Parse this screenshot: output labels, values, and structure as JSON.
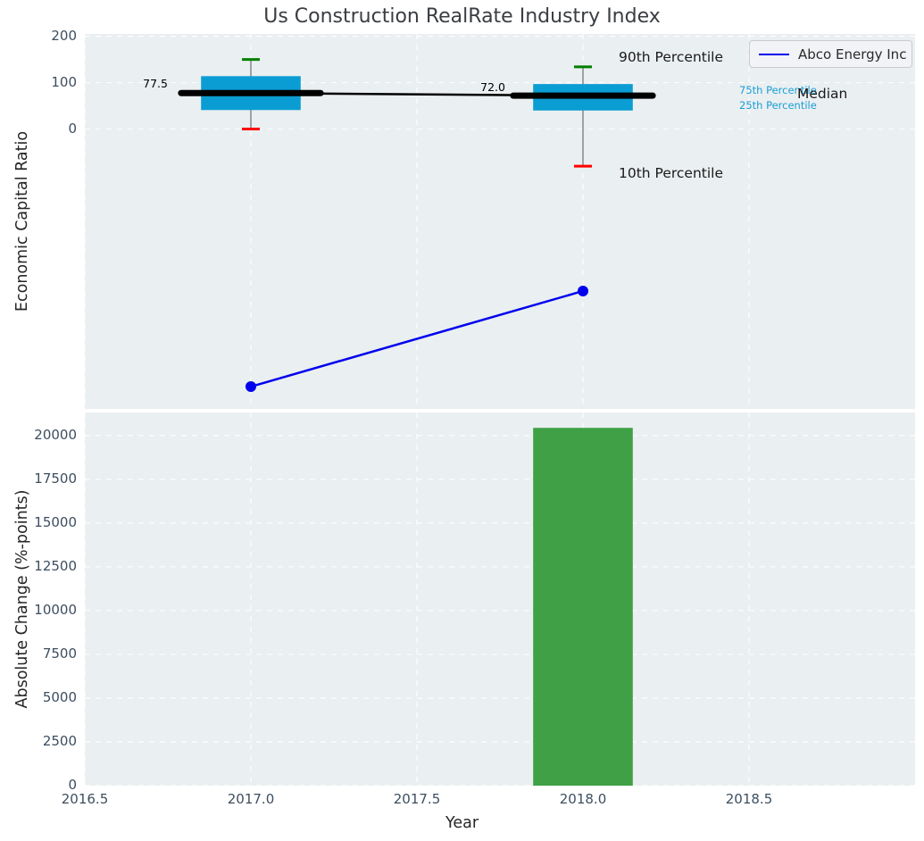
{
  "title": "Us Construction RealRate Industry Index",
  "axes": {
    "top_ylabel": "Economic Capital Ratio",
    "bottom_ylabel": "Absolute Change (%-points)",
    "xlabel": "Year"
  },
  "legend": {
    "label": "Abco Energy Inc"
  },
  "annotations": {
    "p90": "90th Percentile",
    "p10": "10th Percentile",
    "median": "Median",
    "p75": "75th Percentile",
    "p25": "25th Percentile",
    "median_2017": "77.5",
    "median_2018": "72.0"
  },
  "colors": {
    "panel_bg": "#eaeff1",
    "grid": "#ffffff",
    "box_fill": "#0a9dd3",
    "median_line": "#000000",
    "p90_cap": "#008000",
    "p10_cap": "#ff0000",
    "whisker": "#777777",
    "series_line": "#0000ee",
    "bar_fill": "#3fa045",
    "tick_text": "#3d4e60",
    "annotation_cyan": "#1b9ed6"
  },
  "chart_data": [
    {
      "type": "box-timeseries",
      "title": "Us Construction RealRate Industry Index",
      "ylabel": "Economic Capital Ratio",
      "xlim": [
        2016.5,
        2019.0
      ],
      "ylim": [
        -603,
        205
      ],
      "yticks": [
        200,
        100,
        0
      ],
      "ytick_labels": [
        "200",
        "100",
        "0"
      ],
      "xticks": [
        2016.5,
        2017.0,
        2017.5,
        2018.0,
        2018.5
      ],
      "xtick_labels": [
        "2016.5",
        "2017.0",
        "2017.5",
        "2018.0",
        "2018.5"
      ],
      "grid": "dashed-white",
      "legend_position": "upper right",
      "box_width_years": 0.3,
      "median_ext_years": 0.21,
      "boxes": [
        {
          "year": 2017.0,
          "p90": 150,
          "p75": 114,
          "median": 77.5,
          "p25": 41,
          "p10": 0,
          "median_label": "77.5"
        },
        {
          "year": 2018.0,
          "p90": 134,
          "p75": 97,
          "median": 72.0,
          "p25": 40,
          "p10": -80,
          "median_label": "72.0"
        }
      ],
      "series": [
        {
          "name": "Abco Energy Inc",
          "x": [
            2017.0,
            2018.0
          ],
          "values": [
            -555,
            -349
          ]
        }
      ]
    },
    {
      "type": "bar",
      "ylabel": "Absolute Change (%-points)",
      "xlabel": "Year",
      "x": [
        2018.0
      ],
      "values": [
        20440
      ],
      "bar_width_years": 0.3,
      "xlim": [
        2016.5,
        2019.0
      ],
      "ylim": [
        0,
        21320
      ],
      "yticks": [
        0,
        2500,
        5000,
        7500,
        10000,
        12500,
        15000,
        17500,
        20000
      ],
      "ytick_labels": [
        "0",
        "2500",
        "5000",
        "7500",
        "10000",
        "12500",
        "15000",
        "17500",
        "20000"
      ],
      "xticks": [
        2016.5,
        2017.0,
        2017.5,
        2018.0,
        2018.5
      ],
      "grid": "dashed-white"
    }
  ]
}
